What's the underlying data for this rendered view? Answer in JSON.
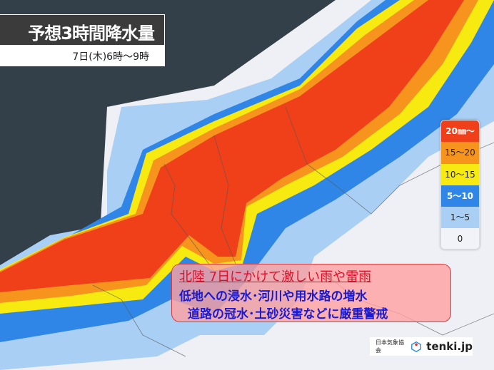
{
  "header": {
    "title": "予想3時間降水量",
    "subtitle": "7日(木)6時～9時"
  },
  "legend": {
    "items": [
      {
        "label": "20㎜～",
        "color": "#f0401a",
        "text_color": "#ffffff"
      },
      {
        "label": "15～20",
        "color": "#f7941d",
        "text_color": "#222222"
      },
      {
        "label": "10～15",
        "color": "#f7ea10",
        "text_color": "#222222"
      },
      {
        "label": "5～10",
        "color": "#2f86e6",
        "text_color": "#ffffff"
      },
      {
        "label": "1～5",
        "color": "#a9cff5",
        "text_color": "#222222"
      },
      {
        "label": "0",
        "color": "#f2f3f8",
        "text_color": "#222222"
      }
    ]
  },
  "warning": {
    "line1": "北陸 7日にかけて激しい雨や雷雨",
    "line2": "低地への浸水･河川や用水路の増水",
    "line3": "道路の冠水･土砂災害などに厳重警戒"
  },
  "credit": {
    "org": "日本気象協会",
    "brand": "tenki.jp",
    "icon": "tenki-logo-icon"
  },
  "colors": {
    "sea": "#334049",
    "land": "#eef0f6"
  }
}
